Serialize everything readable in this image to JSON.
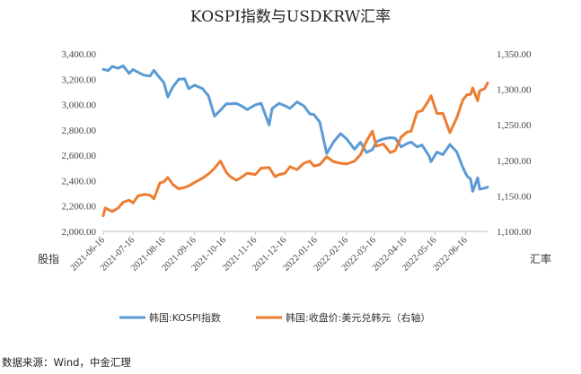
{
  "chart_data": {
    "type": "line",
    "title": "KOSPI指数与USDKRW汇率",
    "ylabel_left": "股指",
    "ylabel_right": "汇率",
    "left_axis": {
      "min": 2000,
      "max": 3400,
      "step": 200,
      "ticks": [
        "2,000.00",
        "2,200.00",
        "2,400.00",
        "2,600.00",
        "2,800.00",
        "3,000.00",
        "3,200.00",
        "3,400.00"
      ]
    },
    "right_axis": {
      "min": 1100,
      "max": 1350,
      "step": 50,
      "ticks": [
        "1,100.00",
        "1,150.00",
        "1,200.00",
        "1,250.00",
        "1,300.00",
        "1,350.00"
      ]
    },
    "x_ticks": [
      "2021-06-16",
      "2021-07-16",
      "2021-08-16",
      "2021-09-16",
      "2021-10-16",
      "2021-11-16",
      "2021-12-16",
      "2022-01-16",
      "2022-02-16",
      "2022-03-16",
      "2022-04-16",
      "2022-05-16",
      "2022-06-16"
    ],
    "grid": false,
    "legend_position": "bottom",
    "series": [
      {
        "name": "韩国:KOSPI指数",
        "axis": "left",
        "color": "#5B9BD5",
        "points": [
          [
            "2021-06-16",
            3278
          ],
          [
            "2021-06-21",
            3268
          ],
          [
            "2021-06-25",
            3300
          ],
          [
            "2021-07-01",
            3286
          ],
          [
            "2021-07-06",
            3305
          ],
          [
            "2021-07-12",
            3246
          ],
          [
            "2021-07-16",
            3276
          ],
          [
            "2021-07-22",
            3250
          ],
          [
            "2021-07-27",
            3232
          ],
          [
            "2021-08-02",
            3225
          ],
          [
            "2021-08-06",
            3270
          ],
          [
            "2021-08-11",
            3220
          ],
          [
            "2021-08-16",
            3172
          ],
          [
            "2021-08-20",
            3060
          ],
          [
            "2021-08-25",
            3138
          ],
          [
            "2021-08-31",
            3200
          ],
          [
            "2021-09-06",
            3202
          ],
          [
            "2021-09-10",
            3125
          ],
          [
            "2021-09-16",
            3153
          ],
          [
            "2021-09-24",
            3125
          ],
          [
            "2021-09-30",
            3068
          ],
          [
            "2021-10-06",
            2908
          ],
          [
            "2021-10-12",
            2956
          ],
          [
            "2021-10-18",
            3006
          ],
          [
            "2021-10-22",
            3006
          ],
          [
            "2021-10-28",
            3009
          ],
          [
            "2021-11-02",
            2990
          ],
          [
            "2021-11-08",
            2960
          ],
          [
            "2021-11-16",
            2997
          ],
          [
            "2021-11-22",
            3010
          ],
          [
            "2021-11-30",
            2839
          ],
          [
            "2021-12-03",
            2968
          ],
          [
            "2021-12-10",
            3010
          ],
          [
            "2021-12-16",
            2990
          ],
          [
            "2021-12-21",
            2970
          ],
          [
            "2021-12-28",
            3020
          ],
          [
            "2022-01-04",
            2989
          ],
          [
            "2022-01-10",
            2926
          ],
          [
            "2022-01-14",
            2921
          ],
          [
            "2022-01-20",
            2862
          ],
          [
            "2022-01-27",
            2614
          ],
          [
            "2022-02-03",
            2707
          ],
          [
            "2022-02-10",
            2771
          ],
          [
            "2022-02-16",
            2729
          ],
          [
            "2022-02-24",
            2648
          ],
          [
            "2022-03-02",
            2703
          ],
          [
            "2022-03-08",
            2622
          ],
          [
            "2022-03-14",
            2645
          ],
          [
            "2022-03-18",
            2707
          ],
          [
            "2022-03-25",
            2729
          ],
          [
            "2022-04-01",
            2739
          ],
          [
            "2022-04-06",
            2735
          ],
          [
            "2022-04-12",
            2666
          ],
          [
            "2022-04-18",
            2693
          ],
          [
            "2022-04-22",
            2704
          ],
          [
            "2022-04-28",
            2667
          ],
          [
            "2022-05-03",
            2680
          ],
          [
            "2022-05-10",
            2596
          ],
          [
            "2022-05-12",
            2550
          ],
          [
            "2022-05-18",
            2625
          ],
          [
            "2022-05-24",
            2605
          ],
          [
            "2022-05-31",
            2685
          ],
          [
            "2022-06-07",
            2626
          ],
          [
            "2022-06-13",
            2504
          ],
          [
            "2022-06-17",
            2440
          ],
          [
            "2022-06-21",
            2410
          ],
          [
            "2022-06-23",
            2315
          ],
          [
            "2022-06-28",
            2423
          ],
          [
            "2022-06-30",
            2333
          ],
          [
            "2022-07-05",
            2341
          ],
          [
            "2022-07-08",
            2350
          ]
        ]
      },
      {
        "name": "韩国:收盘价:美元兑韩元（右轴）",
        "axis": "right",
        "color": "#ED7D31",
        "points": [
          [
            "2021-06-16",
            1122
          ],
          [
            "2021-06-18",
            1133
          ],
          [
            "2021-06-25",
            1128
          ],
          [
            "2021-07-01",
            1133
          ],
          [
            "2021-07-06",
            1141
          ],
          [
            "2021-07-12",
            1144
          ],
          [
            "2021-07-16",
            1140
          ],
          [
            "2021-07-21",
            1150
          ],
          [
            "2021-07-28",
            1152
          ],
          [
            "2021-08-02",
            1151
          ],
          [
            "2021-08-06",
            1146
          ],
          [
            "2021-08-12",
            1168
          ],
          [
            "2021-08-16",
            1170
          ],
          [
            "2021-08-20",
            1176
          ],
          [
            "2021-08-25",
            1166
          ],
          [
            "2021-08-31",
            1160
          ],
          [
            "2021-09-06",
            1162
          ],
          [
            "2021-09-10",
            1164
          ],
          [
            "2021-09-16",
            1169
          ],
          [
            "2021-09-24",
            1175
          ],
          [
            "2021-10-01",
            1182
          ],
          [
            "2021-10-06",
            1189
          ],
          [
            "2021-10-12",
            1199
          ],
          [
            "2021-10-18",
            1183
          ],
          [
            "2021-10-22",
            1177
          ],
          [
            "2021-10-28",
            1172
          ],
          [
            "2021-11-02",
            1176
          ],
          [
            "2021-11-08",
            1182
          ],
          [
            "2021-11-16",
            1180
          ],
          [
            "2021-11-22",
            1189
          ],
          [
            "2021-11-30",
            1190
          ],
          [
            "2021-12-06",
            1177
          ],
          [
            "2021-12-10",
            1180
          ],
          [
            "2021-12-16",
            1182
          ],
          [
            "2021-12-21",
            1191
          ],
          [
            "2021-12-28",
            1187
          ],
          [
            "2022-01-04",
            1196
          ],
          [
            "2022-01-10",
            1199
          ],
          [
            "2022-01-14",
            1192
          ],
          [
            "2022-01-20",
            1194
          ],
          [
            "2022-01-27",
            1205
          ],
          [
            "2022-02-03",
            1198
          ],
          [
            "2022-02-10",
            1196
          ],
          [
            "2022-02-16",
            1195
          ],
          [
            "2022-02-24",
            1199
          ],
          [
            "2022-03-02",
            1208
          ],
          [
            "2022-03-08",
            1227
          ],
          [
            "2022-03-14",
            1241
          ],
          [
            "2022-03-18",
            1220
          ],
          [
            "2022-03-25",
            1223
          ],
          [
            "2022-04-01",
            1211
          ],
          [
            "2022-04-06",
            1214
          ],
          [
            "2022-04-12",
            1233
          ],
          [
            "2022-04-18",
            1240
          ],
          [
            "2022-04-22",
            1241
          ],
          [
            "2022-04-28",
            1268
          ],
          [
            "2022-05-03",
            1270
          ],
          [
            "2022-05-10",
            1285
          ],
          [
            "2022-05-12",
            1291
          ],
          [
            "2022-05-18",
            1266
          ],
          [
            "2022-05-24",
            1266
          ],
          [
            "2022-05-31",
            1239
          ],
          [
            "2022-06-07",
            1260
          ],
          [
            "2022-06-13",
            1285
          ],
          [
            "2022-06-17",
            1292
          ],
          [
            "2022-06-21",
            1293
          ],
          [
            "2022-06-23",
            1302
          ],
          [
            "2022-06-28",
            1284
          ],
          [
            "2022-06-30",
            1298
          ],
          [
            "2022-07-05",
            1301
          ],
          [
            "2022-07-08",
            1309
          ]
        ]
      }
    ]
  },
  "source_text": "数据来源：Wind，中金汇理"
}
